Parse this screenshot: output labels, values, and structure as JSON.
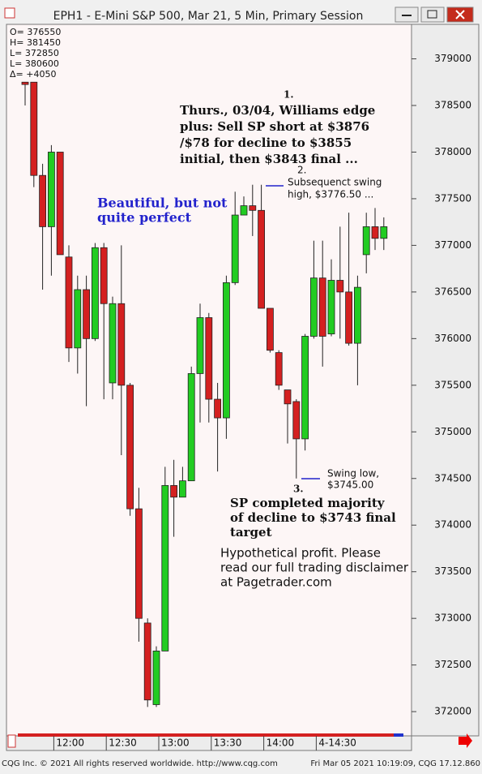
{
  "window_title": "EPH1 - E-Mini S&P 500, Mar 21, 5 Min, Primary Session",
  "stats": [
    "O= 376550",
    "H= 381450",
    "L= 372850",
    "L= 380600",
    "Δ=  +4050"
  ],
  "chart_data": {
    "type": "candlestick",
    "open": [
      378750,
      378750,
      377750,
      377200,
      378000,
      376875,
      375900,
      376525,
      376000,
      376975,
      375525,
      376375,
      375500,
      374175,
      372950,
      372075,
      372650,
      374425,
      374300,
      374475,
      375625,
      376225,
      375350,
      375150,
      376600,
      377325,
      377425,
      377375,
      376325,
      375850,
      375450,
      375325,
      374925,
      376025,
      376650,
      376050,
      376625,
      376500,
      375950,
      376900,
      377200,
      377075
    ],
    "high": [
      378750,
      378750,
      377875,
      378075,
      378000,
      377000,
      376675,
      376675,
      377025,
      377025,
      376450,
      377000,
      375525,
      374400,
      373000,
      372700,
      374625,
      374700,
      374625,
      375700,
      376375,
      376275,
      375525,
      376675,
      377575,
      377525,
      377650,
      377650,
      376325,
      375875,
      375450,
      375350,
      376050,
      377050,
      377050,
      376850,
      377200,
      377350,
      376675,
      377350,
      377400,
      377300
    ],
    "low": [
      378500,
      377625,
      376525,
      376675,
      376900,
      375750,
      375625,
      375275,
      375975,
      375350,
      375350,
      374750,
      374100,
      372750,
      372050,
      372050,
      372650,
      373875,
      374300,
      374475,
      375100,
      375100,
      374575,
      374925,
      376575,
      377325,
      377100,
      376325,
      375850,
      375450,
      374875,
      374500,
      374800,
      376000,
      375700,
      376025,
      376000,
      375925,
      375500,
      376700,
      376950,
      376950
    ],
    "close": [
      378725,
      377750,
      377200,
      378000,
      376900,
      375900,
      376525,
      376000,
      376975,
      376375,
      376375,
      375500,
      374175,
      373000,
      372125,
      372650,
      374425,
      374300,
      374475,
      375625,
      376225,
      375350,
      375150,
      376600,
      377325,
      377425,
      377375,
      376325,
      375875,
      375500,
      375300,
      374925,
      376025,
      376650,
      376025,
      376625,
      376500,
      375950,
      376550,
      377200,
      377075,
      377200
    ],
    "up_color": "#22cc22",
    "down_color": "#d42020",
    "ylim": [
      371740,
      379370
    ],
    "yticks": [
      372000,
      372500,
      373000,
      373500,
      374000,
      374500,
      375000,
      375500,
      376000,
      376500,
      377000,
      377500,
      378000,
      378500,
      379000
    ],
    "xticks": [
      {
        "value": 3,
        "label": "12:00"
      },
      {
        "value": 9,
        "label": "12:30"
      },
      {
        "value": 15,
        "label": "13:00"
      },
      {
        "value": 21,
        "label": "13:30"
      },
      {
        "value": 27,
        "label": "14:00"
      },
      {
        "value": 33,
        "label": "4-14:30"
      }
    ],
    "annotations": [
      {
        "text": [
          "1.",
          "Thurs., 03/04, Williams edge",
          "plus: Sell SP short at $3876",
          "/$78 for decline to $3855",
          "initial, then $3843 final ..."
        ]
      },
      {
        "text": [
          "2.",
          "Subsequenct swing",
          "high, $3776.50 ..."
        ]
      },
      {
        "text": [
          "Beautiful, but not",
          "quite perfect"
        ]
      },
      {
        "text": [
          "Swing low,",
          "$3745.00"
        ]
      },
      {
        "text": [
          "3.",
          "SP completed majority",
          "of decline to $3743 final",
          "target"
        ]
      },
      {
        "text": [
          "Hypothetical profit. Please",
          "read our full trading disclaimer",
          "at Pagetrader.com"
        ]
      }
    ]
  },
  "footer_left": "CQG Inc. © 2021 All rights reserved worldwide. http://www.cqg.com",
  "footer_right": "Fri Mar 05 2021 10:19:09, CQG 17.12.860"
}
